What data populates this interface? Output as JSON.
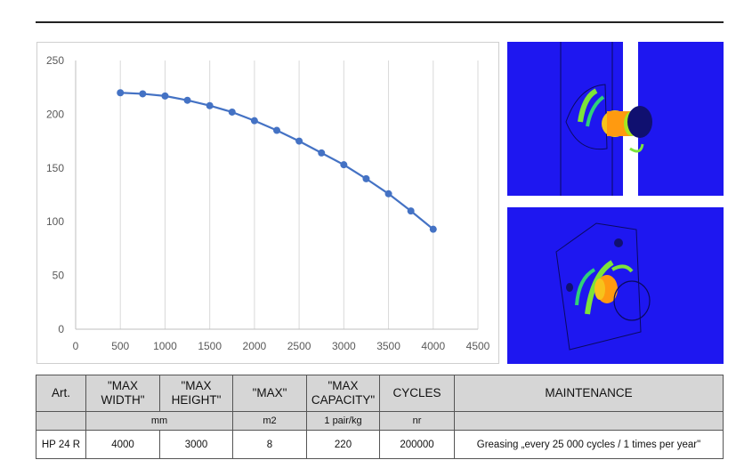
{
  "chart_data": {
    "type": "line",
    "x": [
      500,
      750,
      1000,
      1250,
      1500,
      1750,
      2000,
      2250,
      2500,
      2750,
      3000,
      3250,
      3500,
      3750,
      4000
    ],
    "series": [
      {
        "values": [
          220,
          219,
          217,
          213,
          208,
          202,
          194,
          185,
          175,
          164,
          153,
          140,
          126,
          110,
          93
        ]
      }
    ],
    "xlim": [
      0,
      4500
    ],
    "ylim": [
      0,
      250
    ],
    "x_ticks": [
      "0",
      "500",
      "1000",
      "1500",
      "2000",
      "2500",
      "3000",
      "3500",
      "4000",
      "4500"
    ],
    "y_ticks": [
      "0",
      "50",
      "100",
      "150",
      "200",
      "250"
    ],
    "grid": "vertical",
    "line_color": "#4472c4",
    "title": "",
    "xlabel": "",
    "ylabel": ""
  },
  "images": {
    "top": "stress-simulation-hinge-side",
    "bottom": "stress-simulation-hinge-plate",
    "background_color": "#1e17f0"
  },
  "table": {
    "headers": {
      "art": "Art.",
      "max_width": "\"MAX WIDTH\"",
      "max_height": "\"MAX HEIGHT\"",
      "max": "\"MAX\"",
      "max_capacity": "\"MAX CAPACITY\"",
      "cycles": "CYCLES",
      "maintenance": "MAINTENANCE"
    },
    "units": {
      "mm": "mm",
      "m2": "m2",
      "capacity": "1 pair/kg",
      "nr": "nr"
    },
    "row": {
      "art": "HP 24 R",
      "max_width": "4000",
      "max_height": "3000",
      "max": "8",
      "max_capacity": "220",
      "cycles": "200000",
      "maintenance": "Greasing „every 25 000 cycles / 1 times per year\""
    }
  }
}
